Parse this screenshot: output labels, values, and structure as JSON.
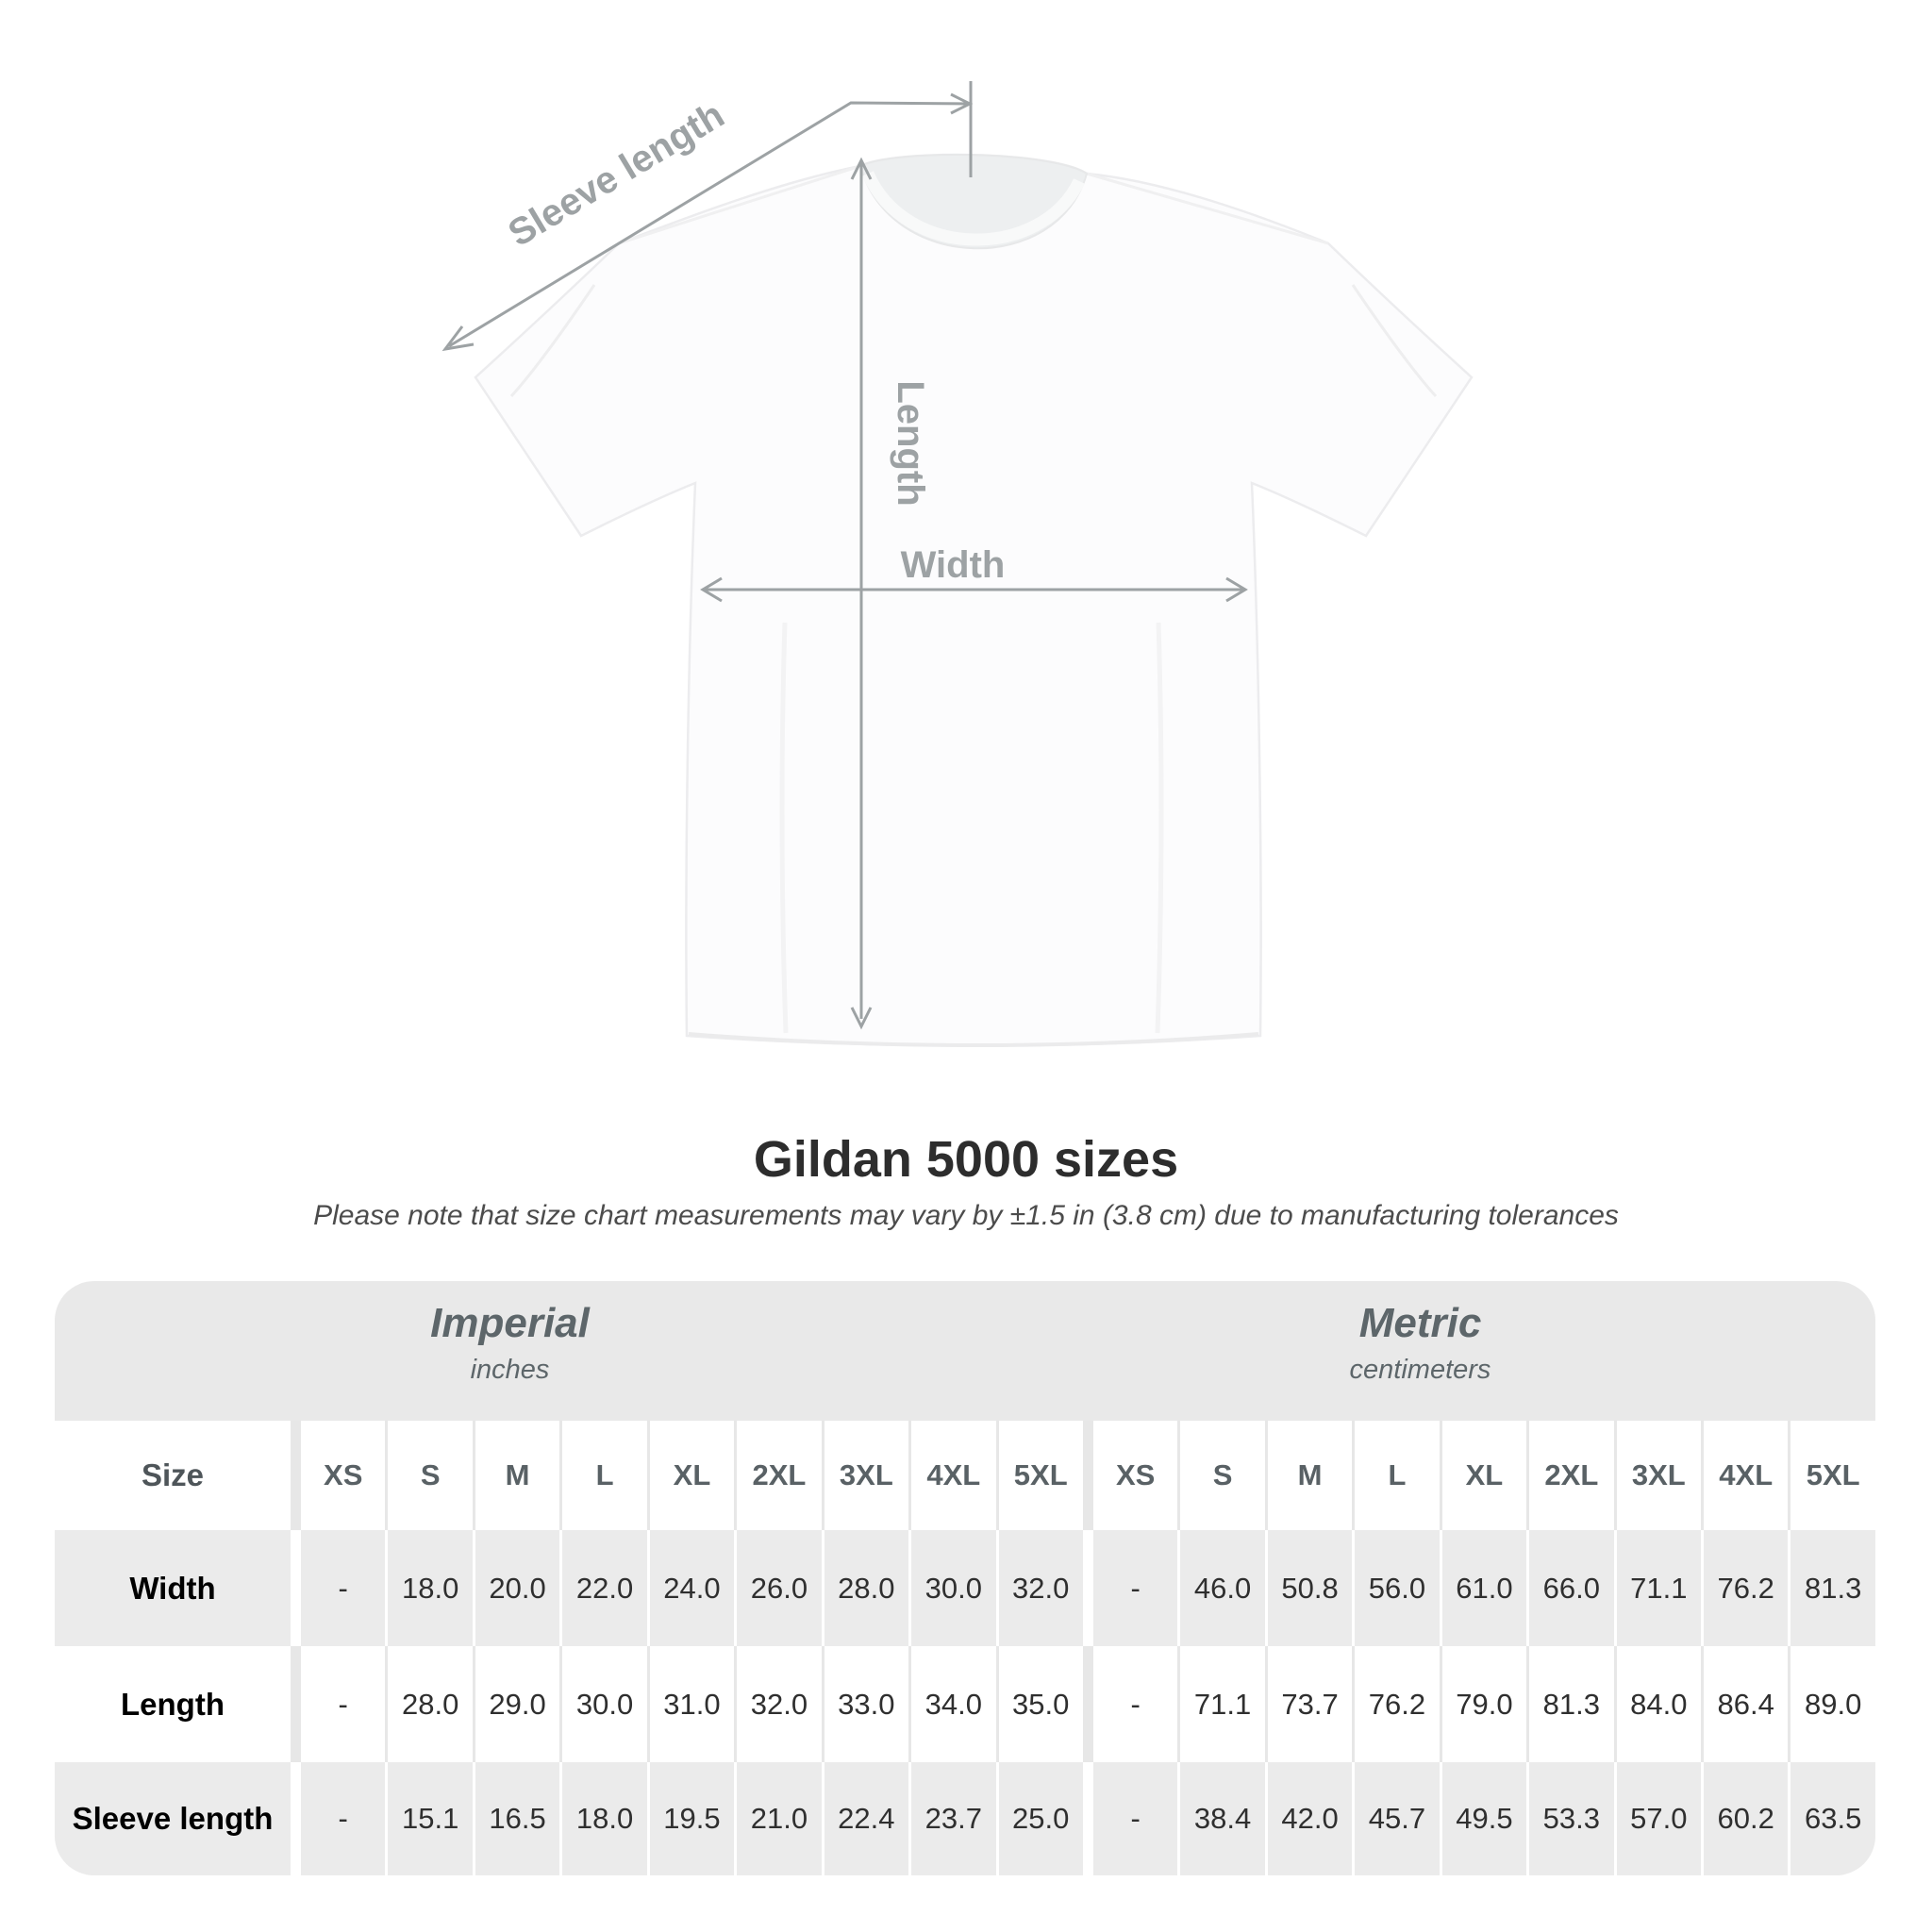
{
  "figure": {
    "labels": {
      "sleeve_length": "Sleeve length",
      "length": "Length",
      "width": "Width"
    }
  },
  "title": "Gildan 5000 sizes",
  "subtitle": "Please note that size chart measurements may vary by ±1.5 in (3.8 cm) due to manufacturing tolerances",
  "table": {
    "size_header": "Size",
    "groups": [
      {
        "label": "Imperial",
        "sublabel": "inches"
      },
      {
        "label": "Metric",
        "sublabel": "centimeters"
      }
    ],
    "sizes": [
      "XS",
      "S",
      "M",
      "L",
      "XL",
      "2XL",
      "3XL",
      "4XL",
      "5XL"
    ],
    "rows": [
      {
        "label": "Width",
        "imperial": [
          "-",
          "18.0",
          "20.0",
          "22.0",
          "24.0",
          "26.0",
          "28.0",
          "30.0",
          "32.0"
        ],
        "metric": [
          "-",
          "46.0",
          "50.8",
          "56.0",
          "61.0",
          "66.0",
          "71.1",
          "76.2",
          "81.3"
        ]
      },
      {
        "label": "Length",
        "imperial": [
          "-",
          "28.0",
          "29.0",
          "30.0",
          "31.0",
          "32.0",
          "33.0",
          "34.0",
          "35.0"
        ],
        "metric": [
          "-",
          "71.1",
          "73.7",
          "76.2",
          "79.0",
          "81.3",
          "84.0",
          "86.4",
          "89.0"
        ]
      },
      {
        "label": "Sleeve length",
        "imperial": [
          "-",
          "15.1",
          "16.5",
          "18.0",
          "19.5",
          "21.0",
          "22.4",
          "23.7",
          "25.0"
        ],
        "metric": [
          "-",
          "38.4",
          "42.0",
          "45.7",
          "49.5",
          "53.3",
          "57.0",
          "60.2",
          "63.5"
        ]
      }
    ]
  },
  "chart_data": {
    "type": "table",
    "title": "Gildan 5000 sizes",
    "note": "Please note that size chart measurements may vary by ±1.5 in (3.8 cm) due to manufacturing tolerances",
    "sizes": [
      "XS",
      "S",
      "M",
      "L",
      "XL",
      "2XL",
      "3XL",
      "4XL",
      "5XL"
    ],
    "imperial_inches": {
      "Width": [
        null,
        18.0,
        20.0,
        22.0,
        24.0,
        26.0,
        28.0,
        30.0,
        32.0
      ],
      "Length": [
        null,
        28.0,
        29.0,
        30.0,
        31.0,
        32.0,
        33.0,
        34.0,
        35.0
      ],
      "Sleeve length": [
        null,
        15.1,
        16.5,
        18.0,
        19.5,
        21.0,
        22.4,
        23.7,
        25.0
      ]
    },
    "metric_centimeters": {
      "Width": [
        null,
        46.0,
        50.8,
        56.0,
        61.0,
        66.0,
        71.1,
        76.2,
        81.3
      ],
      "Length": [
        null,
        71.1,
        73.7,
        76.2,
        79.0,
        81.3,
        84.0,
        86.4,
        89.0
      ],
      "Sleeve length": [
        null,
        38.4,
        42.0,
        45.7,
        49.5,
        53.3,
        57.0,
        60.2,
        63.5
      ]
    }
  },
  "colors": {
    "annotation_gray": "#9da2a4",
    "table_background": "#e9e9e9",
    "stripe_gray": "#ebebeb",
    "header_text": "#596165",
    "value_text": "#2f2f2f",
    "title_text": "#2d2d2d"
  }
}
